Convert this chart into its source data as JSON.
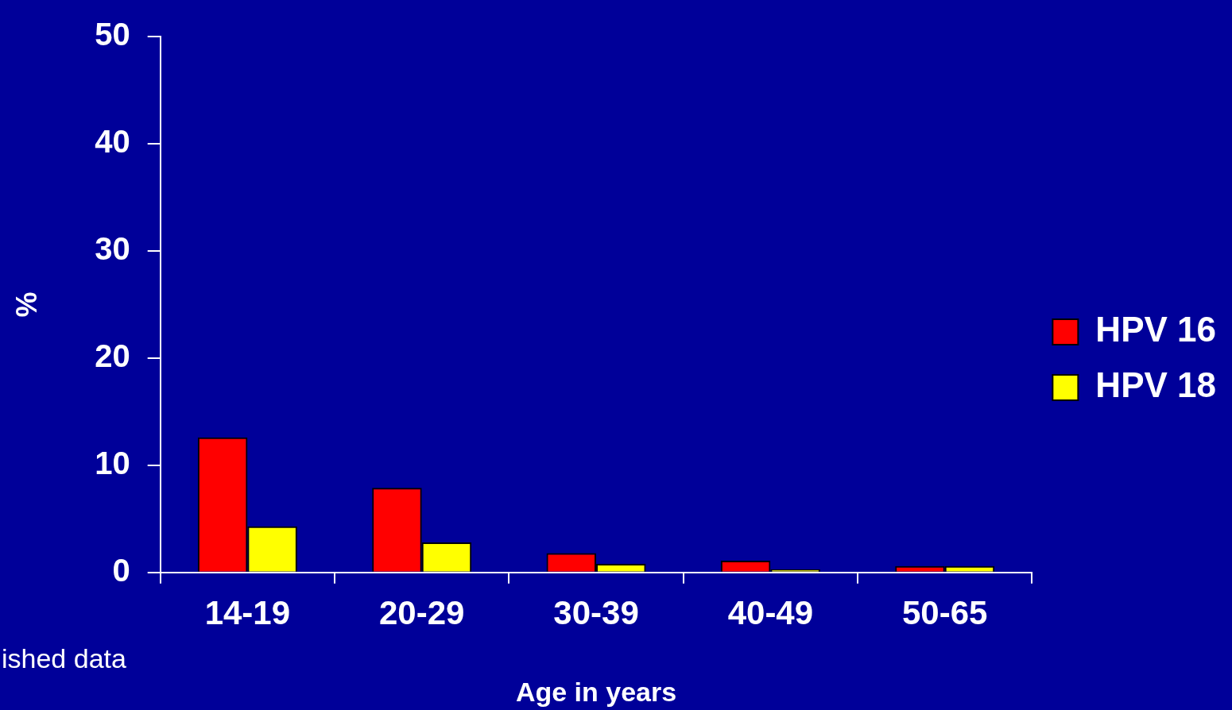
{
  "chart_data": {
    "type": "bar",
    "xlabel": "Age in years",
    "ylabel": "%",
    "categories": [
      "14-19",
      "20-29",
      "30-39",
      "40-49",
      "50-65"
    ],
    "series": [
      {
        "name": "HPV 16",
        "color": "#ff0000",
        "values": [
          12.6,
          7.9,
          1.8,
          1.1,
          0.6
        ]
      },
      {
        "name": "HPV 18",
        "color": "#ffff00",
        "values": [
          4.3,
          2.8,
          0.8,
          0.3,
          0.6
        ]
      }
    ],
    "ylim": [
      0,
      50
    ],
    "yticks": [
      0,
      10,
      20,
      30,
      40,
      50
    ],
    "grid": false,
    "legend": "right",
    "annotations": [
      "ished data"
    ]
  }
}
